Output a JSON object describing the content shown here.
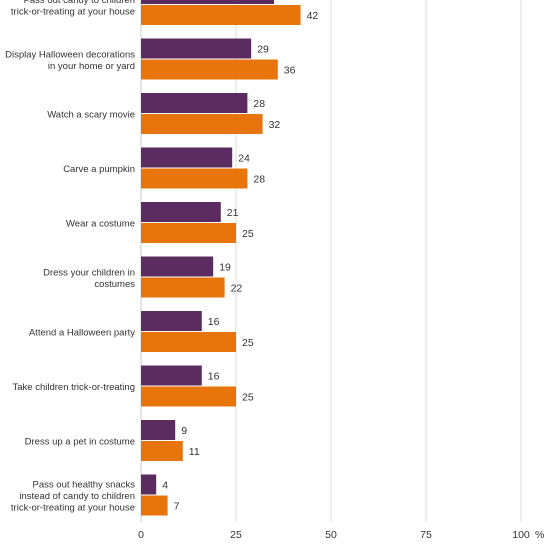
{
  "colors": {
    "series_a": "#5b2c5f",
    "series_b": "#e8740c"
  },
  "chart_data": {
    "type": "bar",
    "orientation": "horizontal",
    "categories": [
      [
        "Pass out candy to children",
        "trick-or-treating at your house"
      ],
      [
        "Display Halloween decorations",
        "in your home or yard"
      ],
      [
        "Watch a scary movie"
      ],
      [
        "Carve a pumpkin"
      ],
      [
        "Wear a costume"
      ],
      [
        "Dress your children in",
        "costumes"
      ],
      [
        "Attend a Halloween party"
      ],
      [
        "Take children trick-or-treating"
      ],
      [
        "Dress up a pet in costume"
      ],
      [
        "Pass out healthy snacks",
        "instead of candy to children",
        "trick-or-treating at your house"
      ]
    ],
    "series": [
      {
        "values": [
          35,
          29,
          28,
          24,
          21,
          19,
          16,
          16,
          9,
          4
        ]
      },
      {
        "values": [
          42,
          36,
          32,
          28,
          25,
          22,
          25,
          25,
          11,
          7
        ]
      }
    ],
    "xlim": [
      0,
      100
    ],
    "xticks": [
      0,
      25,
      50,
      75,
      100
    ],
    "xtick_labels": [
      "0",
      "25",
      "50",
      "75",
      "100"
    ],
    "x_unit": "%",
    "grid": true
  }
}
